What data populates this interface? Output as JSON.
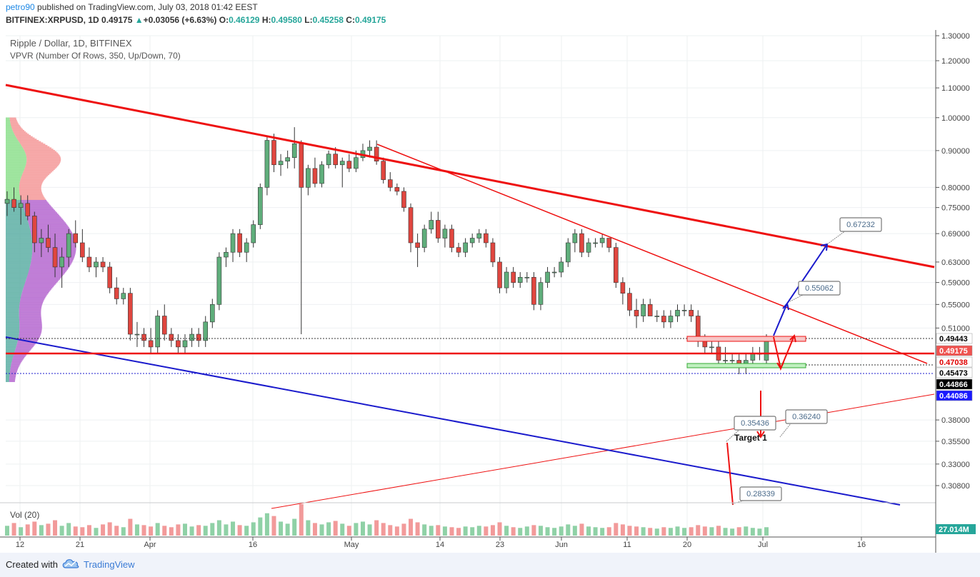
{
  "header": {
    "author": "petro90",
    "published_text": "published on TradingView.com, July 03, 2018 01:42 EEST",
    "symbol": "BITFINEX:XRPUSD, 1D",
    "last_price": "0.49175",
    "change": "+0.03056 (+6.63%)",
    "open_label": "O:",
    "open": "0.46129",
    "high_label": "H:",
    "high": "0.49580",
    "low_label": "L:",
    "low": "0.45258",
    "close_label": "C:",
    "close": "0.49175"
  },
  "chart_data": {
    "type": "candlestick",
    "title": "Ripple / Dollar, 1D, BITFINEX",
    "indicator": "VPVR (Number Of Rows, 350, Up/Down, 70)",
    "volume_label": "Vol (20)",
    "volume_value": "27.014M",
    "y_axis_ticks": [
      "1.30000",
      "1.20000",
      "1.10000",
      "1.00000",
      "0.90000",
      "0.80000",
      "0.75000",
      "0.69000",
      "0.63000",
      "0.59000",
      "0.55000",
      "0.51000",
      "0.38000",
      "0.35500",
      "0.33000",
      "0.30800"
    ],
    "x_axis_ticks": [
      "12",
      "21",
      "Apr",
      "16",
      "May",
      "14",
      "23",
      "Jun",
      "11",
      "20",
      "Jul",
      "16"
    ],
    "price_tags": [
      {
        "value": "0.49443",
        "bg": "#ffffff",
        "fg": "#000000"
      },
      {
        "value": "0.49175",
        "bg": "#ef5350",
        "fg": "#ffffff"
      },
      {
        "value": "0.47038",
        "bg": "#ffffff",
        "fg": "#e00000"
      },
      {
        "value": "0.45473",
        "bg": "#ffffff",
        "fg": "#000000"
      },
      {
        "value": "0.44866",
        "bg": "#000000",
        "fg": "#ffffff"
      },
      {
        "value": "0.44086",
        "bg": "#1a1aff",
        "fg": "#ffffff"
      }
    ],
    "callouts": [
      "0.67232",
      "0.55062",
      "0.35436",
      "0.36240",
      "0.28339"
    ],
    "target_label": "Target 1",
    "candles": [
      [
        0.76,
        0.79,
        0.73,
        0.77
      ],
      [
        0.77,
        0.8,
        0.74,
        0.75
      ],
      [
        0.75,
        0.78,
        0.71,
        0.76
      ],
      [
        0.76,
        0.78,
        0.72,
        0.73
      ],
      [
        0.73,
        0.74,
        0.65,
        0.67
      ],
      [
        0.67,
        0.7,
        0.64,
        0.68
      ],
      [
        0.68,
        0.71,
        0.65,
        0.66
      ],
      [
        0.66,
        0.69,
        0.6,
        0.62
      ],
      [
        0.62,
        0.66,
        0.58,
        0.64
      ],
      [
        0.64,
        0.7,
        0.62,
        0.69
      ],
      [
        0.69,
        0.72,
        0.66,
        0.67
      ],
      [
        0.67,
        0.7,
        0.63,
        0.64
      ],
      [
        0.64,
        0.66,
        0.61,
        0.62
      ],
      [
        0.62,
        0.64,
        0.6,
        0.63
      ],
      [
        0.63,
        0.64,
        0.61,
        0.62
      ],
      [
        0.62,
        0.63,
        0.57,
        0.58
      ],
      [
        0.58,
        0.6,
        0.55,
        0.56
      ],
      [
        0.56,
        0.58,
        0.55,
        0.57
      ],
      [
        0.57,
        0.58,
        0.49,
        0.5
      ],
      [
        0.5,
        0.52,
        0.48,
        0.5
      ],
      [
        0.5,
        0.51,
        0.48,
        0.49
      ],
      [
        0.49,
        0.51,
        0.47,
        0.48
      ],
      [
        0.48,
        0.54,
        0.47,
        0.53
      ],
      [
        0.53,
        0.55,
        0.49,
        0.5
      ],
      [
        0.5,
        0.51,
        0.48,
        0.49
      ],
      [
        0.49,
        0.5,
        0.47,
        0.48
      ],
      [
        0.48,
        0.5,
        0.47,
        0.49
      ],
      [
        0.49,
        0.51,
        0.48,
        0.5
      ],
      [
        0.5,
        0.51,
        0.48,
        0.49
      ],
      [
        0.49,
        0.53,
        0.48,
        0.52
      ],
      [
        0.52,
        0.56,
        0.51,
        0.55
      ],
      [
        0.55,
        0.65,
        0.54,
        0.64
      ],
      [
        0.64,
        0.66,
        0.62,
        0.65
      ],
      [
        0.65,
        0.7,
        0.63,
        0.69
      ],
      [
        0.69,
        0.7,
        0.64,
        0.65
      ],
      [
        0.65,
        0.68,
        0.63,
        0.67
      ],
      [
        0.67,
        0.72,
        0.66,
        0.71
      ],
      [
        0.71,
        0.81,
        0.7,
        0.8
      ],
      [
        0.8,
        0.94,
        0.78,
        0.93
      ],
      [
        0.93,
        0.95,
        0.84,
        0.86
      ],
      [
        0.86,
        0.89,
        0.83,
        0.87
      ],
      [
        0.87,
        0.9,
        0.85,
        0.88
      ],
      [
        0.88,
        0.97,
        0.85,
        0.92
      ],
      [
        0.92,
        0.93,
        0.5,
        0.8
      ],
      [
        0.8,
        0.86,
        0.78,
        0.85
      ],
      [
        0.85,
        0.88,
        0.8,
        0.81
      ],
      [
        0.81,
        0.87,
        0.8,
        0.86
      ],
      [
        0.86,
        0.9,
        0.85,
        0.89
      ],
      [
        0.89,
        0.91,
        0.85,
        0.86
      ],
      [
        0.86,
        0.88,
        0.8,
        0.87
      ],
      [
        0.87,
        0.89,
        0.84,
        0.85
      ],
      [
        0.85,
        0.9,
        0.84,
        0.88
      ],
      [
        0.88,
        0.92,
        0.87,
        0.9
      ],
      [
        0.9,
        0.93,
        0.88,
        0.91
      ],
      [
        0.91,
        0.93,
        0.86,
        0.87
      ],
      [
        0.87,
        0.88,
        0.81,
        0.82
      ],
      [
        0.82,
        0.84,
        0.79,
        0.8
      ],
      [
        0.8,
        0.81,
        0.78,
        0.79
      ],
      [
        0.79,
        0.8,
        0.74,
        0.75
      ],
      [
        0.75,
        0.76,
        0.65,
        0.67
      ],
      [
        0.67,
        0.69,
        0.62,
        0.66
      ],
      [
        0.66,
        0.71,
        0.65,
        0.7
      ],
      [
        0.7,
        0.74,
        0.69,
        0.72
      ],
      [
        0.72,
        0.74,
        0.67,
        0.68
      ],
      [
        0.68,
        0.71,
        0.66,
        0.7
      ],
      [
        0.7,
        0.71,
        0.65,
        0.66
      ],
      [
        0.66,
        0.67,
        0.64,
        0.65
      ],
      [
        0.65,
        0.68,
        0.64,
        0.67
      ],
      [
        0.67,
        0.69,
        0.66,
        0.68
      ],
      [
        0.68,
        0.7,
        0.67,
        0.69
      ],
      [
        0.69,
        0.7,
        0.66,
        0.67
      ],
      [
        0.67,
        0.68,
        0.62,
        0.63
      ],
      [
        0.63,
        0.64,
        0.57,
        0.58
      ],
      [
        0.58,
        0.62,
        0.57,
        0.61
      ],
      [
        0.61,
        0.62,
        0.58,
        0.59
      ],
      [
        0.59,
        0.61,
        0.58,
        0.6
      ],
      [
        0.6,
        0.61,
        0.59,
        0.6
      ],
      [
        0.6,
        0.61,
        0.54,
        0.55
      ],
      [
        0.55,
        0.6,
        0.54,
        0.59
      ],
      [
        0.59,
        0.62,
        0.58,
        0.61
      ],
      [
        0.61,
        0.62,
        0.6,
        0.61
      ],
      [
        0.61,
        0.64,
        0.6,
        0.63
      ],
      [
        0.63,
        0.68,
        0.62,
        0.67
      ],
      [
        0.67,
        0.7,
        0.65,
        0.69
      ],
      [
        0.69,
        0.7,
        0.64,
        0.65
      ],
      [
        0.65,
        0.68,
        0.64,
        0.67
      ],
      [
        0.67,
        0.68,
        0.66,
        0.67
      ],
      [
        0.67,
        0.69,
        0.66,
        0.68
      ],
      [
        0.68,
        0.68,
        0.65,
        0.66
      ],
      [
        0.66,
        0.67,
        0.58,
        0.59
      ],
      [
        0.59,
        0.6,
        0.55,
        0.57
      ],
      [
        0.57,
        0.58,
        0.53,
        0.54
      ],
      [
        0.54,
        0.56,
        0.51,
        0.53
      ],
      [
        0.53,
        0.56,
        0.52,
        0.55
      ],
      [
        0.55,
        0.56,
        0.53,
        0.53
      ],
      [
        0.53,
        0.54,
        0.52,
        0.53
      ],
      [
        0.53,
        0.54,
        0.51,
        0.52
      ],
      [
        0.52,
        0.54,
        0.51,
        0.53
      ],
      [
        0.53,
        0.55,
        0.52,
        0.54
      ],
      [
        0.54,
        0.55,
        0.53,
        0.54
      ],
      [
        0.54,
        0.55,
        0.52,
        0.53
      ],
      [
        0.53,
        0.54,
        0.48,
        0.49
      ],
      [
        0.49,
        0.5,
        0.47,
        0.48
      ],
      [
        0.48,
        0.49,
        0.47,
        0.48
      ],
      [
        0.48,
        0.49,
        0.45,
        0.46
      ],
      [
        0.46,
        0.48,
        0.45,
        0.46
      ],
      [
        0.46,
        0.47,
        0.45,
        0.46
      ],
      [
        0.46,
        0.47,
        0.44,
        0.45
      ],
      [
        0.45,
        0.47,
        0.44,
        0.46
      ],
      [
        0.46,
        0.48,
        0.45,
        0.47
      ],
      [
        0.47,
        0.48,
        0.46,
        0.47
      ],
      [
        0.46,
        0.5,
        0.45,
        0.49
      ]
    ],
    "volumes": [
      14,
      18,
      12,
      16,
      20,
      15,
      17,
      22,
      14,
      18,
      13,
      12,
      15,
      11,
      16,
      19,
      14,
      12,
      24,
      16,
      15,
      13,
      18,
      14,
      12,
      16,
      17,
      13,
      15,
      14,
      18,
      22,
      16,
      20,
      15,
      14,
      19,
      26,
      32,
      28,
      20,
      17,
      24,
      45,
      22,
      18,
      16,
      19,
      21,
      17,
      14,
      18,
      20,
      16,
      22,
      18,
      15,
      13,
      17,
      24,
      19,
      16,
      14,
      15,
      13,
      12,
      11,
      13,
      12,
      14,
      13,
      15,
      19,
      14,
      12,
      11,
      13,
      15,
      14,
      12,
      11,
      13,
      16,
      14,
      17,
      13,
      12,
      11,
      12,
      18,
      16,
      14,
      13,
      12,
      11,
      10,
      12,
      11,
      13,
      11,
      12,
      15,
      13,
      12,
      14,
      11,
      10,
      12,
      13,
      11,
      10,
      12
    ],
    "volume_max_ref": 45
  }
}
